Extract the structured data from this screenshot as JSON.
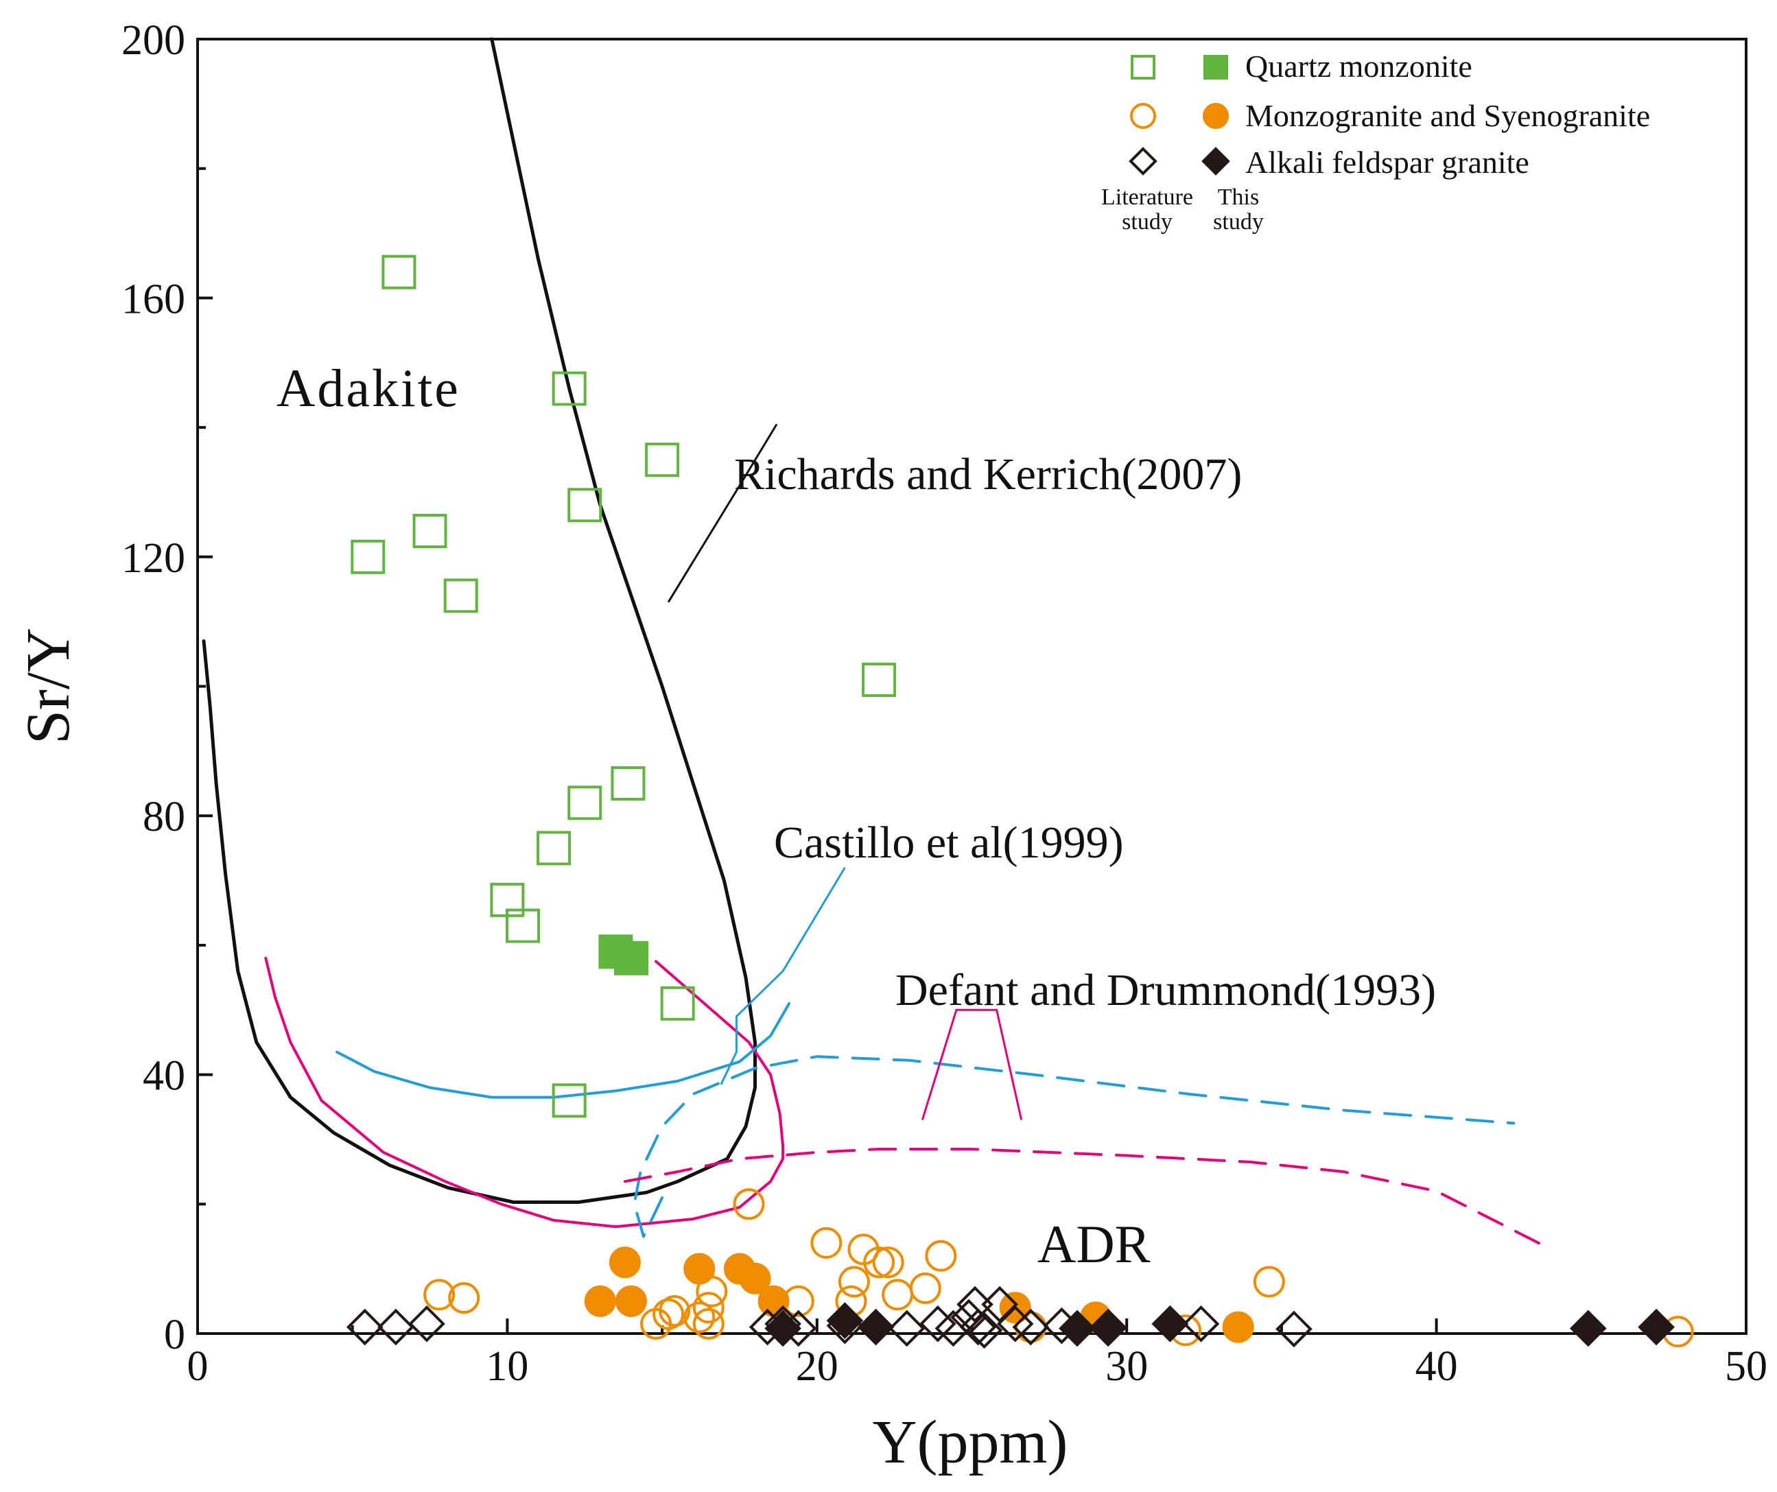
{
  "chart_data": {
    "type": "scatter",
    "xlabel": "Y(ppm)",
    "ylabel": "Sr/Y",
    "xlim": [
      0,
      50
    ],
    "ylim": [
      0,
      200
    ],
    "xticks": [
      0,
      10,
      20,
      30,
      40,
      50
    ],
    "yticks": [
      0,
      40,
      80,
      120,
      160,
      200
    ],
    "field_labels": {
      "adakite": "Adakite",
      "adr": "ADR"
    },
    "annotations": {
      "richards": "Richards and Kerrich(2007)",
      "castillo": "Castillo et al(1999)",
      "defant": "Defant and Drummond(1993)"
    },
    "legend": {
      "entries": [
        {
          "label": "Quartz monzonite",
          "color": "#5fb53e",
          "marker": "square"
        },
        {
          "label": "Monzogranite  and Syenogranite",
          "color": "#f08c00",
          "marker": "circle"
        },
        {
          "label": "Alkali feldspar granite",
          "color": "#231815",
          "marker": "diamond"
        }
      ],
      "col_literature_1": "Literature",
      "col_literature_2": "study",
      "col_this_1": "This",
      "col_this_2": "study"
    },
    "boundaries": {
      "richards": {
        "color": "#111111",
        "style": "solid",
        "points": [
          [
            9.5,
            200
          ],
          [
            11,
            166
          ],
          [
            12,
            146
          ],
          [
            13,
            128
          ],
          [
            14,
            114
          ],
          [
            15,
            100
          ],
          [
            16,
            85
          ],
          [
            17,
            70
          ],
          [
            17.7,
            55
          ],
          [
            18,
            45
          ],
          [
            18,
            38
          ],
          [
            17.7,
            32
          ],
          [
            17.1,
            27
          ],
          [
            15.5,
            23.5
          ],
          [
            14.5,
            21.8
          ],
          [
            12.3,
            20.3
          ],
          [
            10.2,
            20.3
          ],
          [
            8.1,
            22.5
          ],
          [
            6.2,
            26
          ],
          [
            4.4,
            31
          ],
          [
            3,
            36.5
          ],
          [
            1.9,
            45
          ],
          [
            1.3,
            56
          ],
          [
            0.9,
            71
          ],
          [
            0.6,
            85
          ],
          [
            0.4,
            97
          ],
          [
            0.2,
            107
          ]
        ]
      },
      "defant_inner": {
        "color": "#e6007e",
        "style": "solid",
        "points": [
          [
            14.8,
            57.5
          ],
          [
            17.8,
            45
          ],
          [
            18.5,
            40
          ],
          [
            18.8,
            34
          ],
          [
            18.9,
            29
          ],
          [
            18.9,
            27
          ],
          [
            18.5,
            23.5
          ],
          [
            17.5,
            19.5
          ],
          [
            16,
            17.7
          ],
          [
            13.5,
            16.5
          ],
          [
            11.5,
            17.5
          ],
          [
            9.8,
            20
          ],
          [
            8,
            23.5
          ],
          [
            6,
            28
          ],
          [
            4,
            36
          ],
          [
            3,
            45
          ],
          [
            2.5,
            52
          ],
          [
            2.2,
            58
          ]
        ]
      },
      "castillo_inner": {
        "color": "#1f9ed8",
        "style": "solid",
        "points": [
          [
            4.5,
            43.5
          ],
          [
            5.7,
            40.5
          ],
          [
            7.5,
            38
          ],
          [
            9.5,
            36.5
          ],
          [
            11.5,
            36.5
          ],
          [
            13.5,
            37.5
          ],
          [
            15.5,
            39
          ],
          [
            17.5,
            42
          ],
          [
            18.5,
            46
          ],
          [
            19.1,
            51
          ]
        ]
      },
      "castillo_outer": {
        "color": "#1f9ed8",
        "style": "dashed",
        "points": [
          [
            15,
            21
          ],
          [
            14.4,
            15
          ],
          [
            14.1,
            20
          ],
          [
            14.3,
            25
          ],
          [
            15,
            32
          ],
          [
            16,
            37
          ],
          [
            18,
            41
          ],
          [
            20,
            42.8
          ],
          [
            23,
            42.2
          ],
          [
            27,
            40
          ],
          [
            32,
            37
          ],
          [
            37,
            34.5
          ],
          [
            42.5,
            32.5
          ]
        ]
      },
      "defant_outer": {
        "color": "#e6007e",
        "style": "dashed",
        "points": [
          [
            13.8,
            23.5
          ],
          [
            15.5,
            25
          ],
          [
            17.5,
            27
          ],
          [
            20,
            28
          ],
          [
            22,
            28.5
          ],
          [
            25,
            28.5
          ],
          [
            30,
            27.5
          ],
          [
            34,
            26.5
          ],
          [
            37,
            25
          ],
          [
            40,
            22
          ],
          [
            43.5,
            13.5
          ]
        ]
      }
    },
    "leaders": {
      "richards": [
        [
          15.2,
          113
        ],
        [
          17.5,
          131
        ],
        [
          18.7,
          140.5
        ]
      ],
      "castillo": [
        [
          16.9,
          38.5
        ],
        [
          17.4,
          43.5
        ],
        [
          17.4,
          49
        ],
        [
          18.9,
          56
        ],
        [
          20.9,
          72
        ]
      ],
      "defant": [
        [
          23.4,
          33
        ],
        [
          24.5,
          50
        ],
        [
          25.8,
          50
        ],
        [
          26.6,
          33
        ]
      ]
    },
    "series": [
      {
        "name": "Quartz monzonite — Literature study",
        "marker": "square",
        "color": "#5fb53e",
        "filled": false,
        "points": [
          [
            6.5,
            164
          ],
          [
            5.5,
            120
          ],
          [
            7.5,
            124
          ],
          [
            8.5,
            114
          ],
          [
            12,
            146
          ],
          [
            12.5,
            128
          ],
          [
            15,
            135
          ],
          [
            22,
            101
          ],
          [
            12.5,
            82
          ],
          [
            13.9,
            85
          ],
          [
            11.5,
            75
          ],
          [
            10,
            67
          ],
          [
            10.5,
            63
          ],
          [
            15.5,
            51
          ],
          [
            12,
            36
          ]
        ]
      },
      {
        "name": "Quartz monzonite — This study",
        "marker": "square",
        "color": "#5fb53e",
        "filled": true,
        "points": [
          [
            13.5,
            59
          ],
          [
            14,
            58
          ]
        ]
      },
      {
        "name": "Monzogranite and Syenogranite — Literature study",
        "marker": "circle",
        "color": "#f08c00",
        "filled": false,
        "points": [
          [
            7.8,
            6
          ],
          [
            8.6,
            5.5
          ],
          [
            17.8,
            20
          ],
          [
            20.3,
            14
          ],
          [
            21.2,
            8
          ],
          [
            21.1,
            5
          ],
          [
            21.5,
            13
          ],
          [
            22,
            11
          ],
          [
            22.3,
            11
          ],
          [
            22.6,
            6
          ],
          [
            23.5,
            7
          ],
          [
            24,
            12
          ],
          [
            34.6,
            8
          ],
          [
            14.8,
            1.5
          ],
          [
            15.2,
            3
          ],
          [
            15.4,
            3.5
          ],
          [
            16.2,
            2.5
          ],
          [
            16.5,
            4
          ],
          [
            16.6,
            6.5
          ],
          [
            16.5,
            1.5
          ],
          [
            19.4,
            5
          ],
          [
            26.9,
            1
          ],
          [
            31.9,
            0.5
          ],
          [
            47.8,
            0.3
          ]
        ]
      },
      {
        "name": "Monzogranite and Syenogranite — This study",
        "marker": "circle",
        "color": "#f08c00",
        "filled": true,
        "points": [
          [
            13.8,
            11
          ],
          [
            13,
            5
          ],
          [
            14,
            5
          ],
          [
            16.2,
            10
          ],
          [
            17.5,
            10
          ],
          [
            18,
            8.5
          ],
          [
            18.6,
            5
          ],
          [
            26.4,
            4
          ],
          [
            29,
            2.5
          ],
          [
            33.6,
            1
          ]
        ]
      },
      {
        "name": "Alkali feldspar granite — Literature study",
        "marker": "diamond",
        "color": "#231815",
        "filled": false,
        "points": [
          [
            5.4,
            1
          ],
          [
            6.4,
            1
          ],
          [
            7.4,
            1.5
          ],
          [
            18.4,
            1
          ],
          [
            18.9,
            1.5
          ],
          [
            19.4,
            0.8
          ],
          [
            20.9,
            1.2
          ],
          [
            22.9,
            0.8
          ],
          [
            23.9,
            1.5
          ],
          [
            24.4,
            0.8
          ],
          [
            24.9,
            2.5
          ],
          [
            25.1,
            4.5
          ],
          [
            25.2,
            1
          ],
          [
            25.4,
            0.5
          ],
          [
            25.9,
            4.5
          ],
          [
            26.4,
            1.5
          ],
          [
            26.9,
            1
          ],
          [
            27.9,
            1.2
          ],
          [
            29.4,
            0.8
          ],
          [
            31.4,
            1.5
          ],
          [
            32.4,
            1.5
          ],
          [
            35.4,
            0.7
          ]
        ]
      },
      {
        "name": "Alkali feldspar granite — This study",
        "marker": "diamond",
        "color": "#231815",
        "filled": true,
        "points": [
          [
            18.9,
            0.8
          ],
          [
            20.9,
            2
          ],
          [
            21.9,
            1
          ],
          [
            28.4,
            0.8
          ],
          [
            29.4,
            1
          ],
          [
            31.4,
            1.5
          ],
          [
            44.9,
            0.8
          ],
          [
            47.1,
            1
          ]
        ]
      }
    ]
  }
}
